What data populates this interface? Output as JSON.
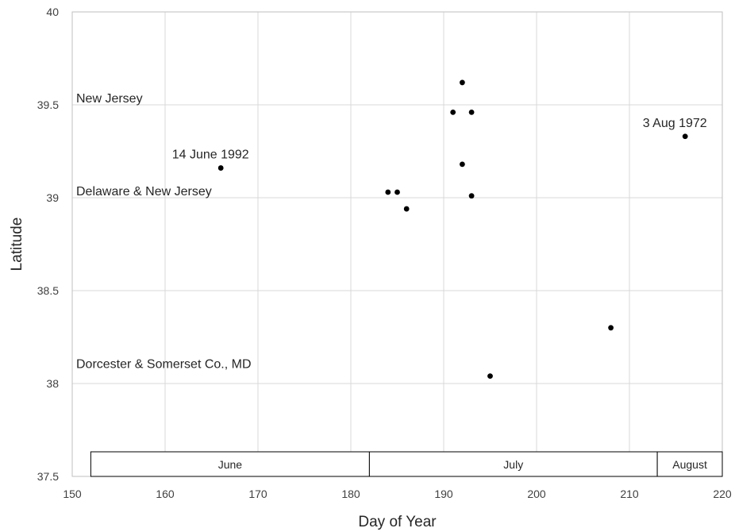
{
  "chart_data": {
    "type": "scatter",
    "title": "",
    "xlabel": "Day of Year",
    "ylabel": "Latitude",
    "xlim": [
      150,
      220
    ],
    "ylim": [
      37.5,
      40
    ],
    "xticks": [
      150,
      160,
      170,
      180,
      190,
      200,
      210,
      220
    ],
    "yticks": [
      37.5,
      38,
      38.5,
      39,
      39.5,
      40
    ],
    "ytick_labels": [
      "37.5",
      "38",
      "38.5",
      "39",
      "39.5",
      "40"
    ],
    "grid": true,
    "points": [
      {
        "x": 166,
        "y": 39.16
      },
      {
        "x": 184,
        "y": 39.03
      },
      {
        "x": 185,
        "y": 39.03
      },
      {
        "x": 186,
        "y": 38.94
      },
      {
        "x": 191,
        "y": 39.46
      },
      {
        "x": 192,
        "y": 39.62
      },
      {
        "x": 192,
        "y": 39.18
      },
      {
        "x": 193,
        "y": 39.46
      },
      {
        "x": 193,
        "y": 39.01
      },
      {
        "x": 195,
        "y": 38.04
      },
      {
        "x": 208,
        "y": 38.3
      },
      {
        "x": 216,
        "y": 39.33
      }
    ],
    "point_annotations": [
      {
        "x": 166,
        "y": 39.16,
        "text": "14 June 1992"
      },
      {
        "x": 216,
        "y": 39.33,
        "text": "3 Aug 1972"
      }
    ],
    "region_labels": [
      {
        "y": 39.5,
        "text": "New Jersey"
      },
      {
        "y": 39.0,
        "text": "Delaware & New Jersey"
      },
      {
        "y": 38.07,
        "text": "Dorcester & Somerset Co., MD"
      }
    ],
    "month_bands": [
      {
        "label": "June",
        "start": 152,
        "end": 182
      },
      {
        "label": "July",
        "start": 182,
        "end": 213
      },
      {
        "label": "August",
        "start": 213,
        "end": 220
      }
    ]
  }
}
